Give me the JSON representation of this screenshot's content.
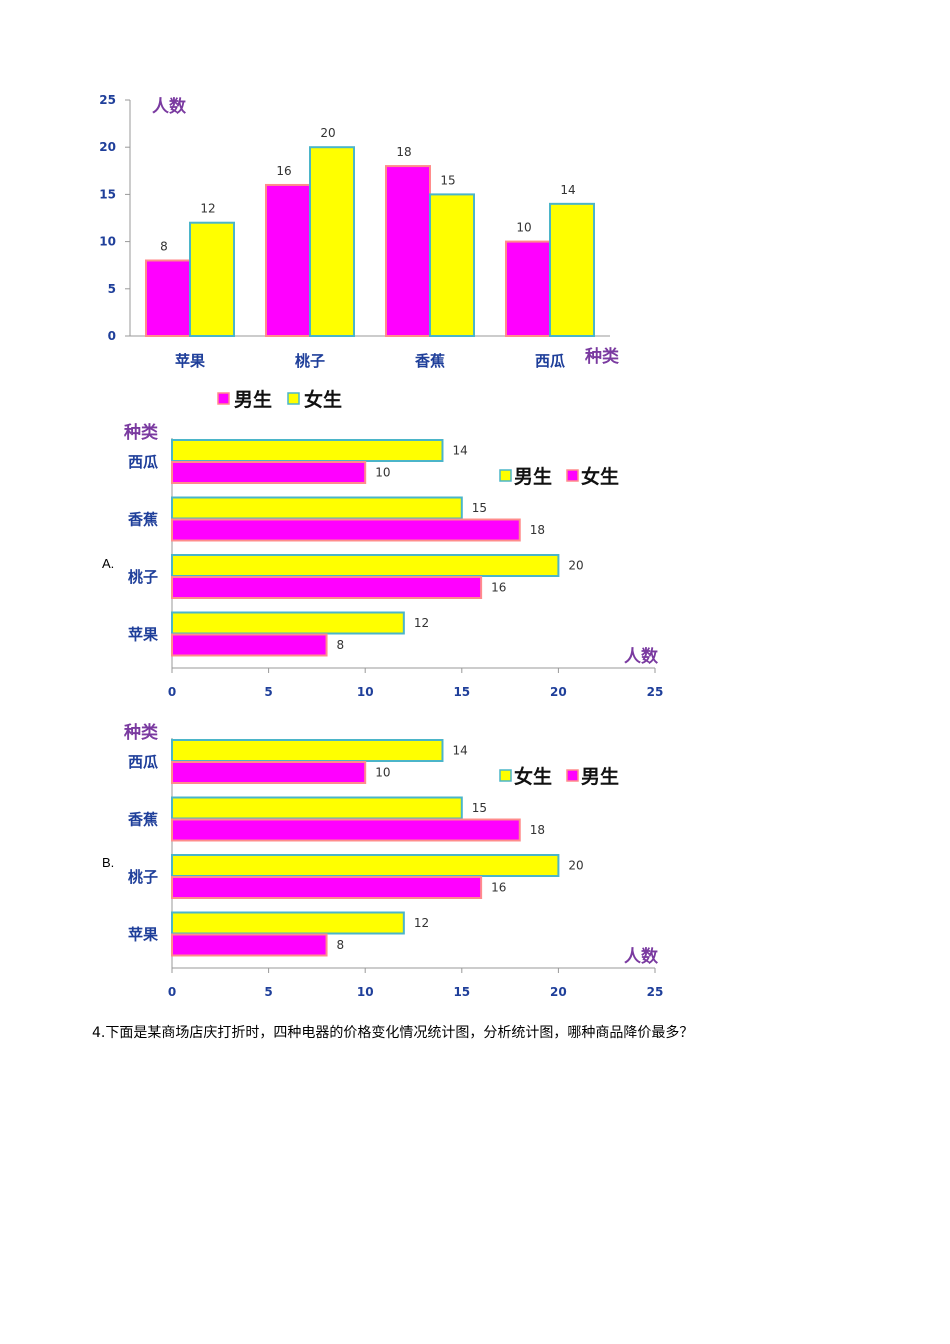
{
  "colors": {
    "pink": "#ff00ff",
    "yellow": "#ffff00",
    "pink_border": "#ff8c8c",
    "yellow_border": "#4bb5c9",
    "axis": "#999999"
  },
  "chart_data": [
    {
      "type": "bar",
      "orientation": "vertical",
      "categories": [
        "苹果",
        "桃子",
        "香蕉",
        "西瓜"
      ],
      "series": [
        {
          "name": "男生",
          "values": [
            8,
            16,
            18,
            10
          ],
          "color": "#ff00ff"
        },
        {
          "name": "女生",
          "values": [
            12,
            20,
            15,
            14
          ],
          "color": "#ffff00"
        }
      ],
      "ylabel": "人数",
      "xlabel": "种类",
      "ylim": [
        0,
        25
      ],
      "yticks": [
        "0",
        "5",
        "10",
        "15",
        "20",
        "25"
      ],
      "legend": [
        {
          "label": "男生",
          "color": "#ff00ff"
        },
        {
          "label": "女生",
          "color": "#ffff00"
        }
      ],
      "legend_position": "bottom"
    },
    {
      "type": "bar",
      "orientation": "horizontal",
      "option_label": "A.",
      "categories": [
        "西瓜",
        "香蕉",
        "桃子",
        "苹果"
      ],
      "series": [
        {
          "values": [
            14,
            15,
            20,
            12
          ],
          "color": "#ffff00"
        },
        {
          "values": [
            10,
            18,
            16,
            8
          ],
          "color": "#ff00ff"
        }
      ],
      "xlabel": "人数",
      "ylabel": "种类",
      "xlim": [
        0,
        25
      ],
      "xticks": [
        "0",
        "5",
        "10",
        "15",
        "20",
        "25"
      ],
      "legend": [
        {
          "label": "男生",
          "color": "#ffff00"
        },
        {
          "label": "女生",
          "color": "#ff00ff"
        }
      ],
      "legend_position": "top-right"
    },
    {
      "type": "bar",
      "orientation": "horizontal",
      "option_label": "B.",
      "categories": [
        "西瓜",
        "香蕉",
        "桃子",
        "苹果"
      ],
      "series": [
        {
          "values": [
            14,
            15,
            20,
            12
          ],
          "color": "#ffff00"
        },
        {
          "values": [
            10,
            18,
            16,
            8
          ],
          "color": "#ff00ff"
        }
      ],
      "xlabel": "人数",
      "ylabel": "种类",
      "xlim": [
        0,
        25
      ],
      "xticks": [
        "0",
        "5",
        "10",
        "15",
        "20",
        "25"
      ],
      "legend": [
        {
          "label": "女生",
          "color": "#ffff00"
        },
        {
          "label": "男生",
          "color": "#ff00ff"
        }
      ],
      "legend_position": "top-right"
    }
  ],
  "question": "4.下面是某商场店庆打折时，四种电器的价格变化情况统计图，分析统计图，哪种商品降价最多？"
}
